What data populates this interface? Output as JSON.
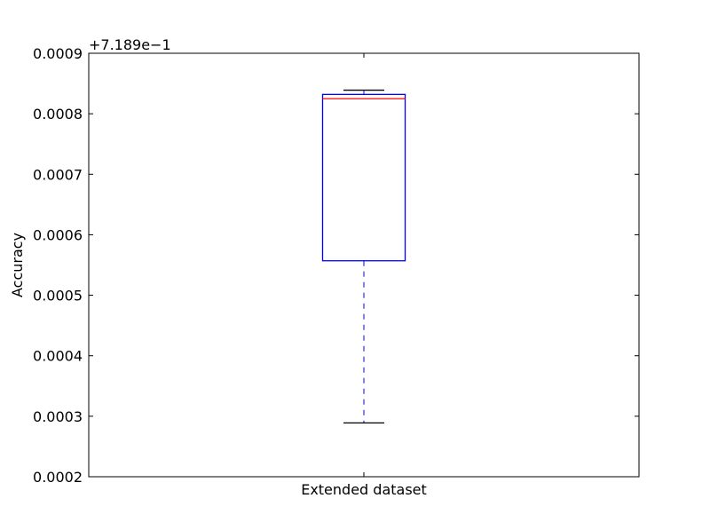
{
  "chart_data": {
    "type": "box",
    "ylabel": "Accuracy",
    "y_offset_label": "+7.189e−1",
    "ylim": [
      0.0002,
      0.0009
    ],
    "yticks": [
      0.0002,
      0.0003,
      0.0004,
      0.0005,
      0.0006,
      0.0007,
      0.0008,
      0.0009
    ],
    "ytick_labels": [
      "0.0002",
      "0.0003",
      "0.0004",
      "0.0005",
      "0.0006",
      "0.0007",
      "0.0008",
      "0.0009"
    ],
    "categories": [
      "Extended dataset"
    ],
    "boxes": [
      {
        "category": "Extended dataset",
        "whisker_low": 0.000289,
        "q1": 0.000557,
        "median": 0.000825,
        "q3": 0.000832,
        "whisker_high": 0.000839
      }
    ],
    "colors": {
      "box": "#0000ff",
      "median": "#ff0000",
      "whisker": "#0000ff",
      "cap": "#000000",
      "frame": "#000000"
    },
    "grid": false
  }
}
